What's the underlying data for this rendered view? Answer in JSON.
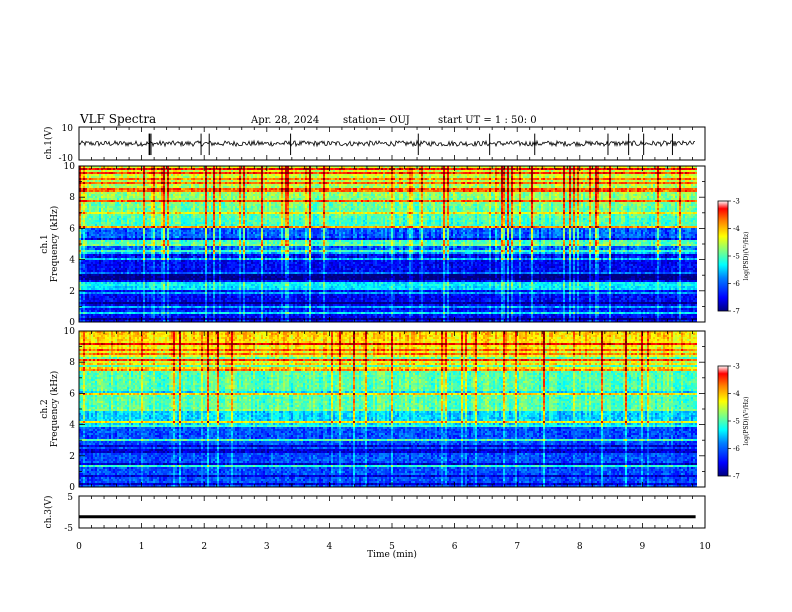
{
  "header": {
    "title": "VLF Spectra",
    "date": "Apr. 28, 2024",
    "station": "station= OUJ",
    "start_ut": "start  UT =   1 : 50: 0"
  },
  "chart_data": [
    {
      "type": "line",
      "name": "ch1-waveform",
      "ylabel": "ch.1(V)",
      "ylim": [
        -10,
        10
      ],
      "yticks": [
        "10",
        "-10"
      ],
      "xlim": [
        0,
        10
      ],
      "baseline": 0,
      "spikes_x_min": [
        1.12,
        1.13,
        1.15,
        1.95,
        2.08,
        3.38,
        5.42,
        6.56,
        7.28,
        8.45,
        8.78,
        9.02,
        9.48
      ]
    },
    {
      "type": "heatmap",
      "name": "ch1-spectrogram",
      "ylabel": "ch.1\nFrequency  (kHz)",
      "ylim": [
        0,
        10
      ],
      "yticks": [
        "0",
        "2",
        "4",
        "6",
        "8",
        "10"
      ],
      "xlim": [
        0,
        9.85
      ],
      "colorbar": {
        "label": "log(PSD)(V²/Hz)",
        "range": [
          -7,
          -3
        ],
        "ticks": [
          "-3",
          "-4",
          "-5",
          "-6",
          "-7"
        ]
      }
    },
    {
      "type": "heatmap",
      "name": "ch2-spectrogram",
      "ylabel": "ch.2\nFrequency  (kHz)",
      "ylim": [
        0,
        10
      ],
      "yticks": [
        "0",
        "2",
        "4",
        "6",
        "8",
        "10"
      ],
      "xlim": [
        0,
        9.85
      ],
      "colorbar": {
        "label": "log(PSD)(V²/Hz)",
        "range": [
          -7,
          -3
        ],
        "ticks": [
          "-3",
          "-4",
          "-5",
          "-6",
          "-7"
        ]
      }
    },
    {
      "type": "line",
      "name": "ch3-waveform",
      "ylabel": "ch.3(V)",
      "ylim": [
        -5,
        5
      ],
      "yticks": [
        "5",
        "-5"
      ],
      "xlim": [
        0,
        10
      ],
      "constant_value": -1.5
    }
  ],
  "xaxis": {
    "label": "Time  (min)",
    "ticks": [
      "0",
      "1",
      "2",
      "3",
      "4",
      "5",
      "6",
      "7",
      "8",
      "9",
      "10"
    ],
    "range": [
      0,
      10
    ]
  },
  "colors": {
    "colormap": [
      "#00007f",
      "#0000ff",
      "#0080ff",
      "#00ffff",
      "#80ff80",
      "#ffff00",
      "#ff8000",
      "#ff0000",
      "#800000"
    ],
    "trace": "#000000"
  }
}
